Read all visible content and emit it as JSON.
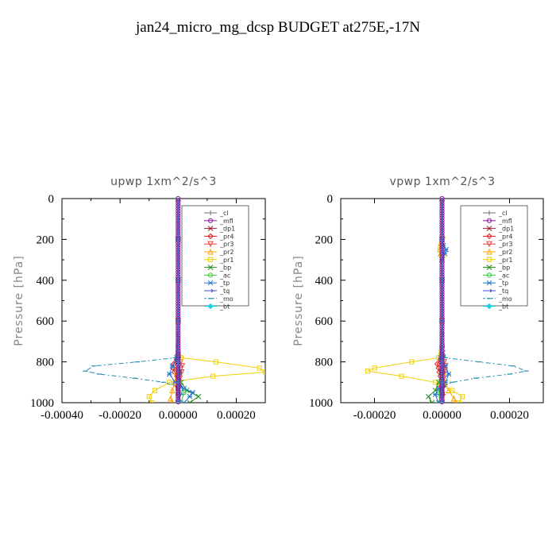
{
  "figure_title": "jan24_micro_mg_dcsp  BUDGET at275E,-17N",
  "chart_data": [
    {
      "type": "line",
      "title": "upwp   1xm^2/s^3",
      "ylabel": "Pressure [hPa]",
      "xlim": [
        -0.0004,
        0.0003
      ],
      "ylim": [
        1000,
        0
      ],
      "xticks": [
        -0.0004,
        -0.0002,
        0.0,
        0.0002
      ],
      "xtick_labels": [
        "-0.00040",
        "-0.00020",
        "0.00000",
        "0.00020"
      ],
      "yticks": [
        0,
        200,
        400,
        600,
        800,
        1000
      ],
      "ytick_labels": [
        "0",
        "200",
        "400",
        "600",
        "800",
        "1000"
      ],
      "series": [
        {
          "name": "_cl",
          "color": "#707070",
          "marker": "+",
          "dash": "",
          "pressure": [
            0,
            200,
            400,
            600,
            780,
            800,
            830,
            870,
            900,
            930,
            960,
            1000
          ],
          "values": [
            0,
            0,
            0,
            0,
            0,
            0,
            0,
            0,
            0,
            0,
            0,
            0
          ]
        },
        {
          "name": "_mfl",
          "color": "#8B1A9C",
          "marker": "o",
          "dash": "",
          "pressure": [
            0,
            200,
            400,
            600,
            780,
            800,
            830,
            870,
            900,
            930,
            960,
            1000
          ],
          "values": [
            0,
            0,
            0,
            0,
            0,
            0,
            0,
            0,
            0,
            0,
            0,
            0
          ]
        },
        {
          "name": "_dp1",
          "color": "#9b1b30",
          "marker": "x",
          "dash": "",
          "pressure": [
            0,
            200,
            400,
            600,
            780,
            800,
            830,
            870,
            900,
            930,
            960,
            1000
          ],
          "values": [
            0,
            0,
            0,
            0,
            0,
            0,
            0,
            0,
            0,
            0,
            0,
            0
          ]
        },
        {
          "name": "_pr4",
          "color": "#e31a1c",
          "marker": "diamond",
          "dash": "",
          "pressure": [
            0,
            200,
            400,
            600,
            760,
            790,
            810,
            830,
            850,
            870,
            890,
            920,
            960,
            1000
          ],
          "values": [
            0,
            0,
            0,
            0,
            0,
            -6e-06,
            -1.5e-05,
            -1.8e-05,
            -1.2e-05,
            -4e-06,
            4e-06,
            -2e-06,
            1e-06,
            0
          ]
        },
        {
          "name": "_pr3",
          "color": "#e8403a",
          "marker": "triangle-down",
          "dash": "",
          "pressure": [
            0,
            200,
            400,
            600,
            780,
            800,
            820,
            850,
            880,
            920,
            960,
            1000
          ],
          "values": [
            0,
            0,
            0,
            0,
            2e-06,
            8e-06,
            1.4e-05,
            1.2e-05,
            6e-06,
            3e-06,
            1e-06,
            0
          ]
        },
        {
          "name": "_pr2",
          "color": "#ffa500",
          "marker": "triangle-up",
          "dash": "",
          "pressure": [
            0,
            200,
            400,
            600,
            780,
            850,
            900,
            940,
            980,
            1000
          ],
          "values": [
            0,
            0,
            0,
            0,
            0,
            -4e-06,
            -1.2e-05,
            -2e-05,
            -2.6e-05,
            -2e-05
          ]
        },
        {
          "name": "_pr1",
          "color": "#f0d000",
          "marker": "square",
          "dash": "",
          "pressure": [
            0,
            200,
            400,
            600,
            780,
            800,
            830,
            850,
            870,
            900,
            940,
            970,
            1000
          ],
          "values": [
            0,
            0,
            0,
            0,
            1e-05,
            0.00013,
            0.00028,
            0.0003,
            0.00012,
            -3e-05,
            -8e-05,
            -0.0001,
            -9e-05
          ]
        },
        {
          "name": "_bp",
          "color": "#1e8c1e",
          "marker": "x",
          "dash": "",
          "pressure": [
            0,
            200,
            400,
            600,
            780,
            850,
            900,
            940,
            970,
            1000
          ],
          "values": [
            0,
            0,
            0,
            0,
            0,
            5e-06,
            1e-05,
            3e-05,
            7e-05,
            4e-05
          ]
        },
        {
          "name": "_ac",
          "color": "#33cc33",
          "marker": "o",
          "dash": "",
          "pressure": [
            0,
            200,
            400,
            600,
            800,
            900,
            950,
            1000
          ],
          "values": [
            0,
            0,
            0,
            0,
            0,
            5e-06,
            2e-05,
            1e-05
          ]
        },
        {
          "name": "_tp",
          "color": "#2277cc",
          "marker": "asterisk",
          "dash": "",
          "pressure": [
            0,
            200,
            400,
            600,
            780,
            820,
            860,
            900,
            930,
            950,
            970,
            1000
          ],
          "values": [
            0,
            0,
            0,
            0,
            -5e-06,
            -2e-05,
            -3e-05,
            -1e-05,
            2e-05,
            5e-05,
            4e-05,
            2e-05
          ]
        },
        {
          "name": "_tq",
          "color": "#4050c8",
          "marker": "arrow",
          "dash": "",
          "pressure": [
            0,
            200,
            400,
            600,
            780,
            850,
            920,
            1000
          ],
          "values": [
            0,
            0,
            0,
            0,
            0,
            3e-06,
            6e-06,
            2e-06
          ]
        },
        {
          "name": "_mo",
          "color": "#2a8fb0",
          "marker": "bar",
          "dash": "6,3,2,3",
          "pressure": [
            0,
            200,
            400,
            600,
            780,
            800,
            820,
            845,
            860,
            880,
            900,
            930,
            960,
            1000
          ],
          "values": [
            0,
            0,
            0,
            0,
            -1e-05,
            -0.00014,
            -0.00029,
            -0.00032,
            -0.00027,
            -0.00015,
            -5e-05,
            2e-05,
            1e-05,
            0
          ]
        },
        {
          "name": "_bt",
          "color": "#00d8e8",
          "marker": "diamond-filled",
          "dash": "",
          "pressure": [
            0,
            200,
            400,
            600,
            800,
            900,
            1000
          ],
          "values": [
            0,
            0,
            0,
            0,
            0,
            0,
            0
          ]
        }
      ]
    },
    {
      "type": "line",
      "title": "vpwp   1xm^2/s^3",
      "ylabel": "Pressure [hPa]",
      "xlim": [
        -0.0003,
        0.0003
      ],
      "ylim": [
        1000,
        0
      ],
      "xticks": [
        -0.0002,
        0.0,
        0.0002
      ],
      "xtick_labels": [
        "-0.00020",
        "0.00000",
        "0.00020"
      ],
      "yticks": [
        0,
        200,
        400,
        600,
        800,
        1000
      ],
      "ytick_labels": [
        "0",
        "200",
        "400",
        "600",
        "800",
        "1000"
      ],
      "series": [
        {
          "name": "_cl",
          "color": "#707070",
          "marker": "+",
          "dash": "",
          "pressure": [
            0,
            200,
            400,
            600,
            780,
            800,
            830,
            870,
            900,
            930,
            960,
            1000
          ],
          "values": [
            0,
            0,
            0,
            0,
            0,
            0,
            0,
            0,
            0,
            0,
            0,
            0
          ]
        },
        {
          "name": "_mfl",
          "color": "#8B1A9C",
          "marker": "o",
          "dash": "",
          "pressure": [
            0,
            200,
            400,
            600,
            780,
            800,
            830,
            870,
            900,
            930,
            960,
            1000
          ],
          "values": [
            0,
            0,
            0,
            0,
            0,
            0,
            0,
            0,
            0,
            0,
            0,
            0
          ]
        },
        {
          "name": "_dp1",
          "color": "#9b1b30",
          "marker": "x",
          "dash": "",
          "pressure": [
            0,
            200,
            400,
            600,
            780,
            800,
            830,
            870,
            900,
            930,
            960,
            1000
          ],
          "values": [
            0,
            0,
            0,
            0,
            0,
            0,
            0,
            0,
            0,
            0,
            0,
            0
          ]
        },
        {
          "name": "_pr4",
          "color": "#e31a1c",
          "marker": "diamond",
          "dash": "",
          "pressure": [
            0,
            200,
            400,
            600,
            760,
            790,
            810,
            830,
            850,
            870,
            890,
            920,
            960,
            1000
          ],
          "values": [
            0,
            0,
            0,
            0,
            0,
            -6e-06,
            -1.4e-05,
            -1e-05,
            -8e-06,
            -5e-06,
            2e-06,
            -4e-06,
            2e-06,
            0
          ]
        },
        {
          "name": "_pr3",
          "color": "#e8403a",
          "marker": "triangle-down",
          "dash": "",
          "pressure": [
            0,
            200,
            400,
            600,
            780,
            800,
            820,
            850,
            880,
            920,
            960,
            1000
          ],
          "values": [
            0,
            0,
            0,
            0,
            2e-06,
            6e-06,
            1e-05,
            8e-06,
            5e-06,
            3e-06,
            1e-06,
            0
          ]
        },
        {
          "name": "_pr2",
          "color": "#ffa500",
          "marker": "triangle-up",
          "dash": "",
          "pressure": [
            0,
            200,
            180,
            220,
            250,
            270,
            300,
            400,
            600,
            780,
            850,
            900,
            940,
            980,
            1000
          ],
          "values": [
            0,
            0,
            2e-06,
            -4e-06,
            -6e-06,
            -4e-06,
            0,
            0,
            0,
            0,
            3e-06,
            8e-06,
            2e-05,
            3.5e-05,
            4e-05
          ]
        },
        {
          "name": "_pr1",
          "color": "#f0d000",
          "marker": "square",
          "dash": "",
          "pressure": [
            0,
            200,
            250,
            280,
            400,
            600,
            780,
            800,
            830,
            845,
            870,
            900,
            940,
            970,
            1000
          ],
          "values": [
            0,
            0,
            -6e-06,
            2e-06,
            0,
            0,
            -1e-05,
            -9e-05,
            -0.0002,
            -0.00022,
            -0.00012,
            -2e-05,
            3e-05,
            6e-05,
            5e-05
          ]
        },
        {
          "name": "_bp",
          "color": "#1e8c1e",
          "marker": "x",
          "dash": "",
          "pressure": [
            0,
            200,
            400,
            600,
            780,
            850,
            900,
            940,
            970,
            1000
          ],
          "values": [
            0,
            0,
            0,
            0,
            0,
            -3e-06,
            -1e-05,
            -2e-05,
            -4e-05,
            -3e-05
          ]
        },
        {
          "name": "_ac",
          "color": "#33cc33",
          "marker": "o",
          "dash": "",
          "pressure": [
            0,
            200,
            400,
            600,
            800,
            900,
            950,
            1000
          ],
          "values": [
            0,
            0,
            0,
            0,
            0,
            -4e-06,
            -1e-05,
            -6e-06
          ]
        },
        {
          "name": "_tp",
          "color": "#2277cc",
          "marker": "asterisk",
          "dash": "",
          "pressure": [
            0,
            200,
            230,
            250,
            270,
            300,
            400,
            600,
            780,
            820,
            860,
            900,
            930,
            960,
            1000
          ],
          "values": [
            0,
            0,
            4e-06,
            1.2e-05,
            8e-06,
            0,
            0,
            0,
            -4e-06,
            1e-05,
            2e-05,
            1e-05,
            -1e-05,
            -2e-05,
            -1e-05
          ]
        },
        {
          "name": "_tq",
          "color": "#4050c8",
          "marker": "arrow",
          "dash": "",
          "pressure": [
            0,
            200,
            400,
            600,
            780,
            850,
            920,
            1000
          ],
          "values": [
            0,
            0,
            0,
            0,
            0,
            2e-06,
            4e-06,
            1e-06
          ]
        },
        {
          "name": "_mo",
          "color": "#2a8fb0",
          "marker": "bar",
          "dash": "6,3,2,3",
          "pressure": [
            0,
            200,
            400,
            600,
            780,
            800,
            820,
            845,
            860,
            880,
            900,
            930,
            960,
            1000
          ],
          "values": [
            0,
            0,
            0,
            0,
            1e-05,
            0.00011,
            0.00021,
            0.00025,
            0.0002,
            0.0001,
            3e-05,
            -1e-05,
            -5e-06,
            0
          ]
        },
        {
          "name": "_bt",
          "color": "#00d8e8",
          "marker": "diamond-filled",
          "dash": "",
          "pressure": [
            0,
            200,
            400,
            600,
            800,
            900,
            1000
          ],
          "values": [
            0,
            0,
            0,
            0,
            0,
            0,
            0
          ]
        }
      ]
    }
  ]
}
